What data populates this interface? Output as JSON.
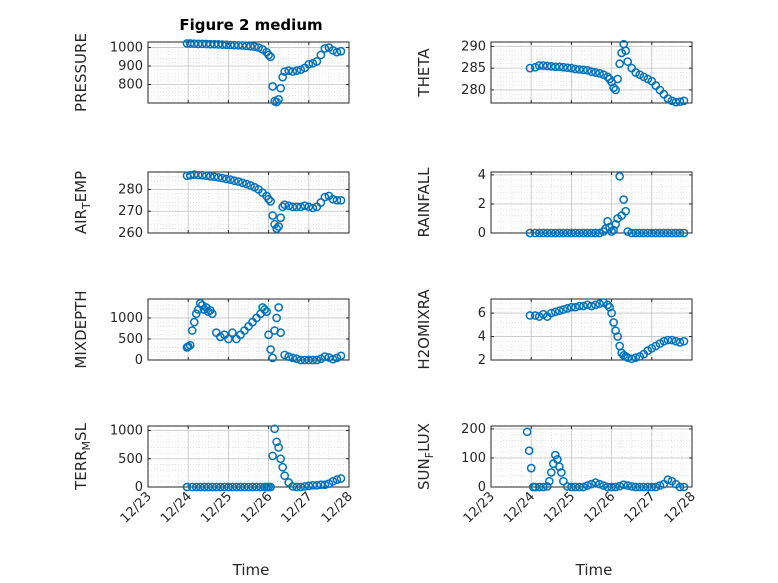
{
  "figure": {
    "title": "Figure 2 medium",
    "xlabel": "Time",
    "marker_color": "#0072BD",
    "x_ticks": [
      "12/23",
      "12/24",
      "12/25",
      "12/26",
      "12/27",
      "12/28"
    ]
  },
  "chart_data": [
    {
      "type": "scatter",
      "ylabel": "PRESSURE",
      "ylim": [
        700,
        1030
      ],
      "yticks": [
        "800",
        "900",
        "1000"
      ],
      "grid": true,
      "x": [
        23.97,
        24.05,
        24.15,
        24.25,
        24.35,
        24.45,
        24.55,
        24.65,
        24.75,
        24.85,
        24.95,
        25.05,
        25.15,
        25.25,
        25.35,
        25.45,
        25.55,
        25.65,
        25.75,
        25.85,
        25.95,
        26.0,
        26.05,
        26.1,
        26.15,
        26.2,
        26.25,
        26.3,
        26.35,
        26.4,
        26.5,
        26.6,
        26.7,
        26.8,
        26.9,
        27.0,
        27.1,
        27.2,
        27.3,
        27.4,
        27.5,
        27.6,
        27.7,
        27.8
      ],
      "y": [
        1022,
        1022,
        1021,
        1020,
        1020,
        1019,
        1018,
        1018,
        1017,
        1016,
        1015,
        1014,
        1013,
        1012,
        1011,
        1009,
        1007,
        1005,
        1000,
        990,
        975,
        960,
        950,
        790,
        710,
        705,
        720,
        780,
        840,
        870,
        875,
        870,
        875,
        880,
        890,
        910,
        915,
        925,
        960,
        995,
        1000,
        985,
        975,
        980
      ]
    },
    {
      "type": "scatter",
      "ylabel": "THETA",
      "ylim": [
        277,
        291
      ],
      "yticks": [
        "280",
        "285",
        "290"
      ],
      "grid": true,
      "x": [
        23.97,
        24.1,
        24.2,
        24.3,
        24.4,
        24.5,
        24.6,
        24.7,
        24.8,
        24.9,
        25.0,
        25.1,
        25.2,
        25.3,
        25.4,
        25.5,
        25.6,
        25.7,
        25.8,
        25.9,
        25.95,
        26.0,
        26.05,
        26.1,
        26.15,
        26.2,
        26.25,
        26.3,
        26.35,
        26.4,
        26.5,
        26.6,
        26.7,
        26.8,
        26.9,
        27.0,
        27.1,
        27.2,
        27.3,
        27.4,
        27.5,
        27.6,
        27.7,
        27.8
      ],
      "y": [
        285.0,
        285.2,
        285.6,
        285.6,
        285.5,
        285.4,
        285.3,
        285.3,
        285.2,
        285.1,
        285.0,
        284.8,
        284.7,
        284.6,
        284.5,
        284.2,
        284.0,
        283.8,
        283.5,
        283.0,
        282.5,
        281.8,
        280.5,
        280.0,
        282.5,
        286.0,
        288.5,
        290.5,
        289.0,
        286.5,
        285.0,
        284.0,
        283.5,
        283.0,
        282.5,
        282.0,
        281.0,
        280.0,
        279.0,
        278.0,
        277.5,
        277.2,
        277.3,
        277.5
      ]
    },
    {
      "type": "scatter",
      "ylabel": "AIR_TEMP",
      "ylim": [
        260,
        288
      ],
      "yticks": [
        "260",
        "270",
        "280"
      ],
      "grid": true,
      "x": [
        23.97,
        24.05,
        24.15,
        24.25,
        24.35,
        24.45,
        24.55,
        24.65,
        24.75,
        24.85,
        24.95,
        25.05,
        25.15,
        25.25,
        25.35,
        25.45,
        25.55,
        25.65,
        25.75,
        25.85,
        25.95,
        26.0,
        26.05,
        26.1,
        26.15,
        26.2,
        26.25,
        26.3,
        26.35,
        26.4,
        26.5,
        26.6,
        26.7,
        26.8,
        26.9,
        27.0,
        27.1,
        27.2,
        27.3,
        27.4,
        27.5,
        27.6,
        27.7,
        27.8
      ],
      "y": [
        286.3,
        286.5,
        286.8,
        286.6,
        286.5,
        286.3,
        286.0,
        285.8,
        285.5,
        285.2,
        284.8,
        284.5,
        284.0,
        283.6,
        283.0,
        282.5,
        281.8,
        281.0,
        280.0,
        278.5,
        277.0,
        275.5,
        274.5,
        268.0,
        264.0,
        262.0,
        263.0,
        267.0,
        272.0,
        273.0,
        272.5,
        272.0,
        272.0,
        272.0,
        272.5,
        272.0,
        271.5,
        272.0,
        274.0,
        276.5,
        277.0,
        275.5,
        275.0,
        275.0
      ]
    },
    {
      "type": "scatter",
      "ylabel": "RAINFALL",
      "ylim": [
        0,
        4.2
      ],
      "yticks": [
        "0",
        "2",
        "4"
      ],
      "grid": true,
      "x": [
        23.97,
        24.1,
        24.2,
        24.3,
        24.4,
        24.5,
        24.6,
        24.7,
        24.8,
        24.9,
        25.0,
        25.1,
        25.2,
        25.3,
        25.4,
        25.5,
        25.6,
        25.7,
        25.8,
        25.85,
        25.9,
        25.95,
        26.0,
        26.05,
        26.1,
        26.15,
        26.2,
        26.25,
        26.3,
        26.35,
        26.4,
        26.5,
        26.6,
        26.7,
        26.8,
        26.9,
        27.0,
        27.1,
        27.2,
        27.3,
        27.4,
        27.5,
        27.6,
        27.7,
        27.8
      ],
      "y": [
        0,
        0,
        0,
        0,
        0,
        0,
        0,
        0,
        0,
        0,
        0,
        0,
        0,
        0,
        0,
        0,
        0,
        0,
        0.1,
        0.3,
        0.8,
        0.4,
        0.1,
        0.2,
        0.6,
        1.0,
        3.9,
        1.2,
        2.3,
        1.5,
        0.1,
        0,
        0,
        0,
        0,
        0,
        0,
        0,
        0,
        0,
        0,
        0,
        0,
        0,
        0
      ]
    },
    {
      "type": "scatter",
      "ylabel": "MIXDEPTH",
      "ylim": [
        0,
        1450
      ],
      "yticks": [
        "0",
        "500",
        "1000"
      ],
      "grid": true,
      "x": [
        23.97,
        24.0,
        24.05,
        24.1,
        24.15,
        24.2,
        24.25,
        24.3,
        24.35,
        24.4,
        24.45,
        24.5,
        24.55,
        24.6,
        24.7,
        24.8,
        24.9,
        25.0,
        25.1,
        25.2,
        25.3,
        25.4,
        25.5,
        25.6,
        25.7,
        25.8,
        25.85,
        25.9,
        25.95,
        26.0,
        26.05,
        26.1,
        26.15,
        26.2,
        26.25,
        26.3,
        26.4,
        26.5,
        26.6,
        26.7,
        26.8,
        26.9,
        27.0,
        27.1,
        27.2,
        27.3,
        27.4,
        27.5,
        27.6,
        27.7,
        27.8
      ],
      "y": [
        300,
        320,
        350,
        700,
        900,
        1100,
        1200,
        1350,
        1300,
        1200,
        1250,
        1150,
        1180,
        1100,
        650,
        550,
        600,
        500,
        650,
        500,
        600,
        700,
        800,
        900,
        1000,
        1100,
        1250,
        1200,
        1150,
        600,
        250,
        50,
        700,
        1000,
        1250,
        650,
        120,
        80,
        50,
        30,
        0,
        0,
        0,
        0,
        0,
        30,
        80,
        60,
        20,
        50,
        100
      ]
    },
    {
      "type": "scatter",
      "ylabel": "H2OMIXRA",
      "ylim": [
        2,
        7.2
      ],
      "yticks": [
        "2",
        "4",
        "6"
      ],
      "grid": true,
      "x": [
        23.97,
        24.1,
        24.2,
        24.3,
        24.4,
        24.5,
        24.6,
        24.7,
        24.8,
        24.9,
        25.0,
        25.1,
        25.2,
        25.3,
        25.4,
        25.5,
        25.6,
        25.7,
        25.8,
        25.9,
        25.95,
        26.0,
        26.05,
        26.1,
        26.15,
        26.2,
        26.25,
        26.3,
        26.35,
        26.4,
        26.5,
        26.6,
        26.7,
        26.8,
        26.9,
        27.0,
        27.1,
        27.2,
        27.3,
        27.4,
        27.5,
        27.6,
        27.7,
        27.8
      ],
      "y": [
        5.8,
        5.8,
        5.7,
        5.9,
        5.7,
        6.0,
        6.1,
        6.2,
        6.3,
        6.4,
        6.5,
        6.5,
        6.6,
        6.6,
        6.7,
        6.6,
        6.7,
        6.8,
        6.9,
        6.7,
        6.5,
        6.0,
        5.2,
        4.5,
        4.0,
        3.2,
        2.6,
        2.4,
        2.3,
        2.2,
        2.1,
        2.2,
        2.3,
        2.5,
        2.8,
        3.0,
        3.2,
        3.4,
        3.6,
        3.7,
        3.7,
        3.6,
        3.5,
        3.6
      ]
    },
    {
      "type": "scatter",
      "ylabel": "TERR_MSL",
      "ylim": [
        0,
        1080
      ],
      "yticks": [
        "0",
        "500",
        "1000"
      ],
      "grid": true,
      "x": [
        23.97,
        24.1,
        24.2,
        24.3,
        24.4,
        24.5,
        24.6,
        24.7,
        24.8,
        24.9,
        25.0,
        25.1,
        25.2,
        25.3,
        25.4,
        25.5,
        25.6,
        25.7,
        25.8,
        25.9,
        25.95,
        26.0,
        26.05,
        26.1,
        26.15,
        26.2,
        26.25,
        26.3,
        26.35,
        26.4,
        26.5,
        26.6,
        26.7,
        26.8,
        26.9,
        27.0,
        27.1,
        27.2,
        27.3,
        27.4,
        27.5,
        27.6,
        27.7,
        27.8
      ],
      "y": [
        0,
        0,
        0,
        0,
        0,
        0,
        0,
        0,
        0,
        0,
        0,
        0,
        0,
        0,
        0,
        0,
        0,
        0,
        0,
        0,
        0,
        0,
        0,
        550,
        1030,
        800,
        700,
        500,
        350,
        200,
        80,
        10,
        0,
        0,
        10,
        20,
        30,
        30,
        40,
        40,
        60,
        100,
        130,
        150
      ]
    },
    {
      "type": "scatter",
      "ylabel": "SUN_FLUX",
      "ylim": [
        0,
        210
      ],
      "yticks": [
        "0",
        "100",
        "200"
      ],
      "grid": true,
      "x": [
        23.9,
        23.95,
        24.0,
        24.05,
        24.1,
        24.2,
        24.3,
        24.4,
        24.45,
        24.5,
        24.55,
        24.6,
        24.65,
        24.7,
        24.75,
        24.8,
        24.9,
        25.0,
        25.1,
        25.2,
        25.3,
        25.4,
        25.5,
        25.6,
        25.7,
        25.8,
        25.9,
        26.0,
        26.1,
        26.2,
        26.3,
        26.4,
        26.5,
        26.6,
        26.7,
        26.8,
        26.9,
        27.0,
        27.1,
        27.2,
        27.3,
        27.4,
        27.5,
        27.6,
        27.7,
        27.8
      ],
      "y": [
        190,
        125,
        65,
        0,
        0,
        0,
        0,
        2,
        20,
        50,
        80,
        110,
        95,
        70,
        50,
        20,
        2,
        0,
        0,
        0,
        0,
        5,
        10,
        15,
        10,
        5,
        0,
        0,
        0,
        3,
        8,
        5,
        2,
        0,
        0,
        0,
        0,
        0,
        0,
        5,
        10,
        25,
        20,
        10,
        0,
        0
      ]
    }
  ]
}
